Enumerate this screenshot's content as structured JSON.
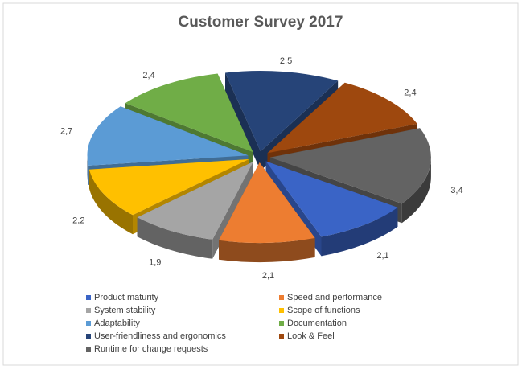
{
  "chart_data": {
    "type": "pie",
    "title": "Customer Survey 2017",
    "categories": [
      "Product maturity",
      "Speed and performance",
      "System stability",
      "Scope of functions",
      "Adaptability",
      "Documentation",
      "User-friendliness and ergonomics",
      "Look & Feel",
      "Runtime for change requests"
    ],
    "values": [
      2.1,
      2.1,
      1.9,
      2.2,
      2.7,
      2.4,
      2.5,
      2.4,
      3.4
    ],
    "value_labels": [
      "2,1",
      "2,1",
      "1,9",
      "2,2",
      "2,7",
      "2,4",
      "2,5",
      "2,4",
      "3,4"
    ],
    "colors": [
      "#3a64c6",
      "#ed7d31",
      "#a5a5a5",
      "#ffc000",
      "#5b9bd5",
      "#70ad47",
      "#264478",
      "#9e480e",
      "#636363"
    ],
    "legend": "bottom"
  }
}
